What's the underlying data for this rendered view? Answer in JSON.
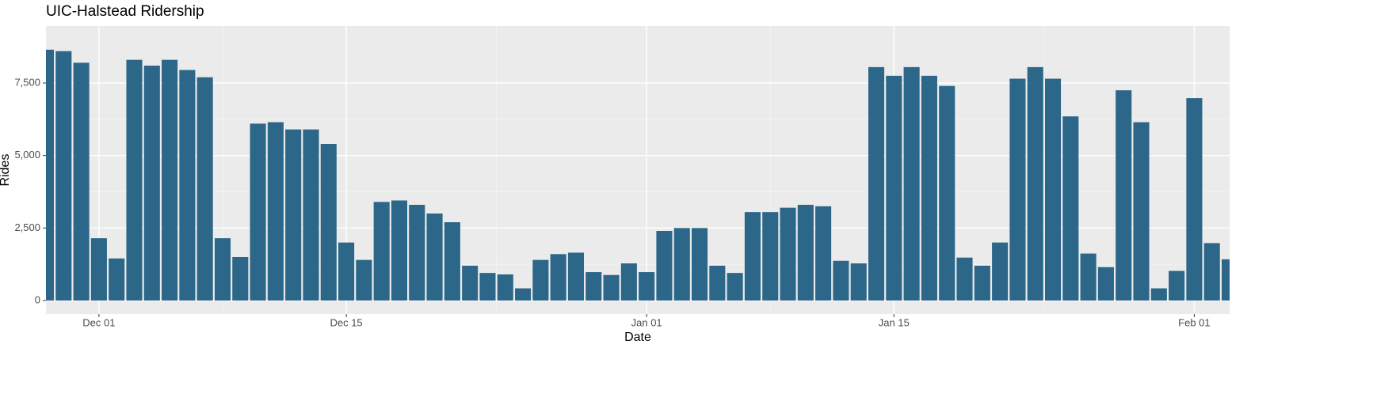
{
  "chart_data": {
    "type": "bar",
    "title": "UIC-Halstead Ridership",
    "x_label": "Date",
    "y_label": "Rides",
    "categories": [
      null,
      null,
      null,
      "Dec 01",
      null,
      null,
      null,
      null,
      null,
      null,
      null,
      null,
      null,
      null,
      null,
      null,
      null,
      "Dec 15",
      null,
      null,
      null,
      null,
      null,
      null,
      null,
      null,
      null,
      null,
      null,
      null,
      null,
      null,
      null,
      null,
      "Jan 01",
      null,
      null,
      null,
      null,
      null,
      null,
      null,
      null,
      null,
      null,
      null,
      null,
      null,
      "Jan 15",
      null,
      null,
      null,
      null,
      null,
      null,
      null,
      null,
      null,
      null,
      null,
      null,
      null,
      null,
      null,
      null,
      "Feb 01",
      null,
      null
    ],
    "values": [
      8650,
      8600,
      8200,
      2150,
      1450,
      8300,
      8100,
      8300,
      7950,
      7700,
      2150,
      1500,
      6100,
      6150,
      5900,
      5900,
      5400,
      2000,
      1400,
      3400,
      3450,
      3300,
      3000,
      2700,
      1200,
      950,
      900,
      420,
      1400,
      1600,
      1650,
      980,
      880,
      1280,
      980,
      2400,
      2500,
      2500,
      1200,
      950,
      3050,
      3050,
      3200,
      3300,
      3250,
      1370,
      1280,
      8050,
      7750,
      8050,
      7750,
      7400,
      1480,
      1200,
      2000,
      7650,
      8050,
      7650,
      6350,
      1620,
      1150,
      7250,
      6150,
      420,
      1020,
      6980,
      1980,
      1420
    ],
    "color": "#2c6688",
    "ylim": [
      -464,
      9464
    ],
    "yticks": [
      0,
      {
        "value": 2500,
        "label": "2,500"
      },
      {
        "value": 5000,
        "label": "5,000"
      },
      {
        "value": 7500,
        "label": "7,500"
      }
    ],
    "grid": true
  }
}
